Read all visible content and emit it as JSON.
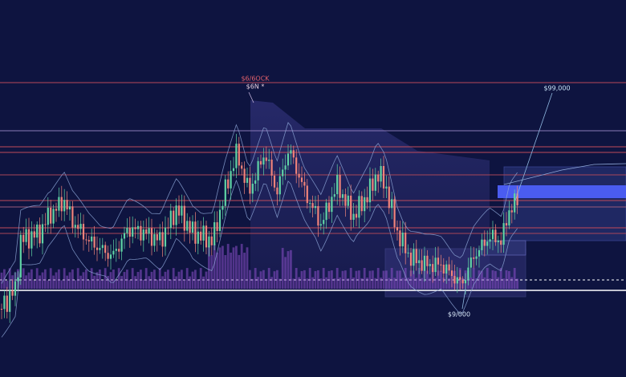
{
  "annotations": {
    "top_label": "$6/6OCK",
    "top_sublabel": "$6N *",
    "right_label": "$99,000",
    "bottom_label": "$9/000"
  }
}
